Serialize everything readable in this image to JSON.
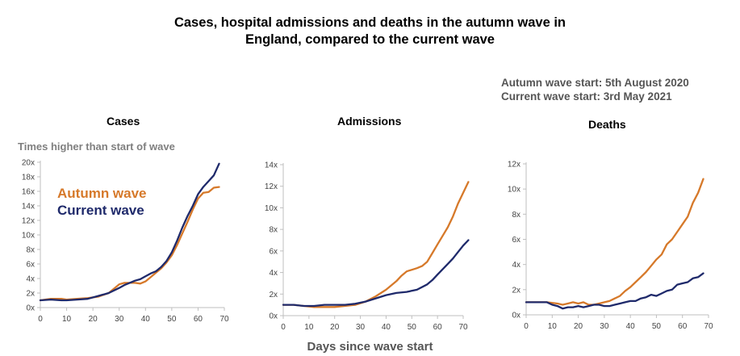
{
  "title_lines": [
    "Cases, hospital admissions and deaths in the autumn wave in",
    "England, compared to the current wave"
  ],
  "info_lines": [
    "Autumn wave start: 5th August 2020",
    "Current wave start: 3rd May 2021"
  ],
  "unit_label": "Times higher than start of wave",
  "legend": {
    "autumn": "Autumn wave",
    "current": "Current wave",
    "autumn_color": "#d6792a",
    "current_color": "#1f2a6b"
  },
  "x_axis_label": "Days since wave start",
  "chart_data": [
    {
      "type": "line",
      "title": "Cases",
      "ylabel": "Times higher than start of wave",
      "xlabel": "Days since wave start",
      "xlim": [
        0,
        70
      ],
      "ylim": [
        0,
        20
      ],
      "x_ticks": [
        0,
        10,
        20,
        30,
        40,
        50,
        60,
        70
      ],
      "y_ticks": [
        0,
        2,
        4,
        6,
        8,
        10,
        12,
        14,
        16,
        18,
        20
      ],
      "y_tick_labels": [
        "0x",
        "2x",
        "4x",
        "6x",
        "8x",
        "10x",
        "12x",
        "14x",
        "16x",
        "18x",
        "20x"
      ],
      "grid": false,
      "series": [
        {
          "name": "Autumn wave",
          "color": "#d6792a",
          "x": [
            0,
            4,
            8,
            10,
            14,
            18,
            22,
            26,
            28,
            30,
            32,
            34,
            36,
            38,
            40,
            42,
            44,
            46,
            48,
            50,
            52,
            54,
            56,
            58,
            60,
            62,
            64,
            66,
            68
          ],
          "y": [
            1.0,
            1.2,
            1.2,
            1.1,
            1.2,
            1.3,
            1.5,
            2.0,
            2.6,
            3.2,
            3.4,
            3.4,
            3.4,
            3.3,
            3.6,
            4.2,
            4.8,
            5.4,
            6.2,
            7.2,
            8.6,
            10.2,
            11.8,
            13.5,
            15.0,
            15.8,
            15.9,
            16.5,
            16.6
          ]
        },
        {
          "name": "Current wave",
          "color": "#1f2a6b",
          "x": [
            0,
            4,
            8,
            10,
            14,
            18,
            22,
            26,
            30,
            32,
            34,
            36,
            38,
            40,
            42,
            44,
            46,
            48,
            50,
            52,
            54,
            56,
            58,
            60,
            62,
            64,
            66,
            68
          ],
          "y": [
            1.0,
            1.1,
            1.0,
            1.0,
            1.1,
            1.2,
            1.6,
            2.0,
            2.7,
            3.1,
            3.4,
            3.7,
            3.9,
            4.3,
            4.7,
            5.0,
            5.6,
            6.4,
            7.6,
            9.2,
            11.0,
            12.6,
            14.0,
            15.6,
            16.6,
            17.4,
            18.2,
            19.8
          ]
        }
      ]
    },
    {
      "type": "line",
      "title": "Admissions",
      "xlabel": "Days since wave start",
      "xlim": [
        0,
        70
      ],
      "ylim": [
        0,
        14
      ],
      "x_ticks": [
        0,
        10,
        20,
        30,
        40,
        50,
        60,
        70
      ],
      "y_ticks": [
        0,
        2,
        4,
        6,
        8,
        10,
        12,
        14
      ],
      "y_tick_labels": [
        "0x",
        "2x",
        "4x",
        "6x",
        "8x",
        "10x",
        "12x",
        "14x"
      ],
      "grid": false,
      "series": [
        {
          "name": "Autumn wave",
          "color": "#d6792a",
          "x": [
            0,
            4,
            8,
            12,
            16,
            20,
            24,
            28,
            32,
            36,
            40,
            44,
            46,
            48,
            52,
            54,
            56,
            58,
            60,
            62,
            64,
            66,
            68,
            70,
            72
          ],
          "y": [
            1.0,
            1.0,
            0.9,
            0.8,
            0.8,
            0.8,
            0.9,
            1.0,
            1.3,
            1.8,
            2.4,
            3.2,
            3.7,
            4.1,
            4.4,
            4.6,
            5.0,
            5.8,
            6.6,
            7.4,
            8.2,
            9.2,
            10.4,
            11.4,
            12.4
          ]
        },
        {
          "name": "Current wave",
          "color": "#1f2a6b",
          "x": [
            0,
            4,
            8,
            12,
            16,
            20,
            24,
            28,
            32,
            36,
            40,
            44,
            48,
            52,
            56,
            58,
            60,
            62,
            64,
            66,
            68,
            70,
            72
          ],
          "y": [
            1.0,
            1.0,
            0.9,
            0.9,
            1.0,
            1.0,
            1.0,
            1.1,
            1.3,
            1.6,
            1.9,
            2.1,
            2.2,
            2.4,
            2.9,
            3.3,
            3.8,
            4.3,
            4.8,
            5.3,
            5.9,
            6.5,
            7.0
          ]
        }
      ]
    },
    {
      "type": "line",
      "title": "Deaths",
      "xlabel": "Days since wave start",
      "xlim": [
        0,
        70
      ],
      "ylim": [
        0,
        12
      ],
      "x_ticks": [
        0,
        10,
        20,
        30,
        40,
        50,
        60,
        70
      ],
      "y_ticks": [
        0,
        2,
        4,
        6,
        8,
        10,
        12
      ],
      "y_tick_labels": [
        "0x",
        "2x",
        "4x",
        "6x",
        "8x",
        "10x",
        "12x"
      ],
      "grid": false,
      "series": [
        {
          "name": "Autumn wave",
          "color": "#d6792a",
          "x": [
            0,
            4,
            8,
            12,
            14,
            16,
            18,
            20,
            22,
            24,
            26,
            28,
            30,
            32,
            34,
            36,
            38,
            40,
            42,
            44,
            46,
            48,
            50,
            52,
            54,
            56,
            58,
            60,
            62,
            64,
            66,
            68
          ],
          "y": [
            1.0,
            1.0,
            1.0,
            0.9,
            0.8,
            0.9,
            1.0,
            0.9,
            1.0,
            0.8,
            0.8,
            0.9,
            1.0,
            1.1,
            1.3,
            1.5,
            1.9,
            2.2,
            2.6,
            3.0,
            3.4,
            3.9,
            4.4,
            4.8,
            5.6,
            6.0,
            6.6,
            7.2,
            7.8,
            8.9,
            9.7,
            10.8
          ]
        },
        {
          "name": "Current wave",
          "color": "#1f2a6b",
          "x": [
            0,
            4,
            8,
            10,
            12,
            14,
            16,
            18,
            20,
            22,
            24,
            26,
            28,
            30,
            32,
            34,
            36,
            38,
            40,
            42,
            44,
            46,
            48,
            50,
            52,
            54,
            56,
            58,
            60,
            62,
            64,
            66,
            68
          ],
          "y": [
            1.0,
            1.0,
            1.0,
            0.8,
            0.7,
            0.5,
            0.6,
            0.6,
            0.7,
            0.6,
            0.7,
            0.8,
            0.8,
            0.7,
            0.7,
            0.8,
            0.9,
            1.0,
            1.1,
            1.1,
            1.3,
            1.4,
            1.6,
            1.5,
            1.7,
            1.9,
            2.0,
            2.4,
            2.5,
            2.6,
            2.9,
            3.0,
            3.3
          ]
        }
      ]
    }
  ]
}
